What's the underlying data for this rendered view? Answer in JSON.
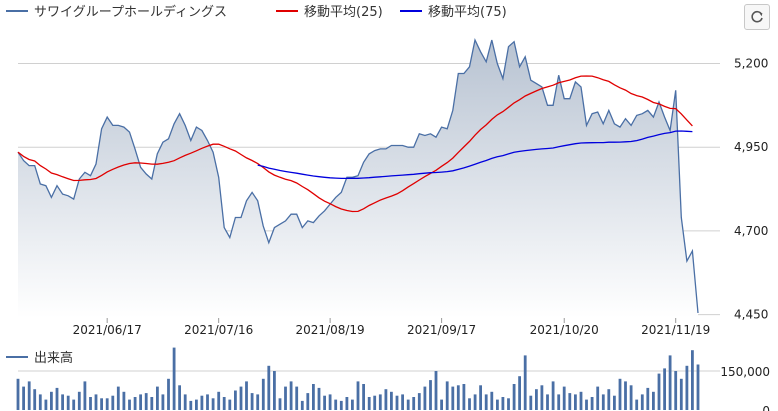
{
  "colors": {
    "price": "#4a6fa5",
    "price_fill_top": "#b8c3d2",
    "price_fill_bottom": "#ffffff",
    "ma25": "#e00000",
    "ma75": "#0000dd",
    "volume": "#4a6fa5",
    "grid": "#d0d0d0"
  },
  "reset_icon": "refresh-icon",
  "chart_data": [
    {
      "type": "area",
      "legend": [
        "サワイグループホールディングス",
        "移動平均(25)",
        "移動平均(75)"
      ],
      "x_tick_labels": [
        "2021/06/17",
        "2021/07/16",
        "2021/08/19",
        "2021/09/17",
        "2021/10/20",
        "2021/11/19"
      ],
      "x_tick_index": [
        16,
        36,
        56,
        76,
        98,
        118
      ],
      "y_tick_labels": [
        "5,200",
        "4,950",
        "4,700",
        "4,450"
      ],
      "y_tick_values": [
        5200,
        4950,
        4700,
        4450
      ],
      "ylim": [
        4440,
        5300
      ],
      "grid": true,
      "series": [
        {
          "name": "サワイグループホールディングス",
          "values": [
            4935,
            4910,
            4895,
            4895,
            4840,
            4835,
            4800,
            4835,
            4810,
            4805,
            4795,
            4855,
            4875,
            4865,
            4900,
            5005,
            5040,
            5015,
            5015,
            5010,
            4995,
            4945,
            4890,
            4870,
            4855,
            4930,
            4965,
            4975,
            5020,
            5050,
            5015,
            4970,
            5010,
            5000,
            4970,
            4935,
            4860,
            4710,
            4680,
            4740,
            4740,
            4790,
            4815,
            4790,
            4715,
            4665,
            4710,
            4720,
            4730,
            4750,
            4750,
            4710,
            4730,
            4725,
            4745,
            4760,
            4780,
            4800,
            4815,
            4860,
            4860,
            4865,
            4905,
            4930,
            4940,
            4945,
            4945,
            4955,
            4955,
            4955,
            4950,
            4950,
            4990,
            4985,
            4990,
            4980,
            5010,
            5005,
            5060,
            5170,
            5170,
            5190,
            5270,
            5235,
            5205,
            5270,
            5200,
            5155,
            5250,
            5265,
            5190,
            5220,
            5150,
            5140,
            5130,
            5075,
            5075,
            5165,
            5095,
            5095,
            5145,
            5130,
            5015,
            5050,
            5055,
            5020,
            5060,
            5020,
            5010,
            5035,
            5015,
            5045,
            5050,
            5060,
            5040,
            5085,
            5040,
            5000,
            5120,
            4740,
            4610,
            4640,
            4455
          ]
        },
        {
          "name": "移動平均(25)",
          "start_index": 0
        },
        {
          "name": "移動平均(75)",
          "start_index": 43
        }
      ]
    },
    {
      "type": "bar",
      "legend": "出来高",
      "y_tick_labels": [
        "150,000",
        "0"
      ],
      "y_tick_values": [
        150000,
        0
      ],
      "ylim": [
        0,
        250000
      ],
      "series": [
        {
          "name": "出来高",
          "values": [
            120000,
            90000,
            110000,
            80000,
            60000,
            40000,
            70000,
            85000,
            60000,
            55000,
            40000,
            70000,
            110000,
            50000,
            60000,
            45000,
            45000,
            55000,
            90000,
            70000,
            40000,
            50000,
            60000,
            65000,
            50000,
            90000,
            60000,
            120000,
            240000,
            95000,
            60000,
            35000,
            40000,
            55000,
            60000,
            45000,
            70000,
            50000,
            40000,
            75000,
            90000,
            110000,
            65000,
            60000,
            120000,
            170000,
            150000,
            45000,
            90000,
            110000,
            90000,
            35000,
            65000,
            100000,
            85000,
            55000,
            60000,
            40000,
            35000,
            50000,
            40000,
            110000,
            100000,
            50000,
            55000,
            60000,
            80000,
            70000,
            55000,
            60000,
            40000,
            50000,
            65000,
            90000,
            115000,
            150000,
            40000,
            110000,
            90000,
            95000,
            100000,
            45000,
            60000,
            95000,
            60000,
            70000,
            40000,
            50000,
            45000,
            100000,
            130000,
            210000,
            55000,
            80000,
            95000,
            60000,
            110000,
            60000,
            90000,
            65000,
            60000,
            70000,
            40000,
            50000,
            90000,
            60000,
            80000,
            55000,
            120000,
            110000,
            95000,
            40000,
            60000,
            85000,
            70000,
            140000,
            160000,
            210000,
            150000,
            120000,
            170000,
            230000,
            175000
          ]
        }
      ]
    }
  ]
}
